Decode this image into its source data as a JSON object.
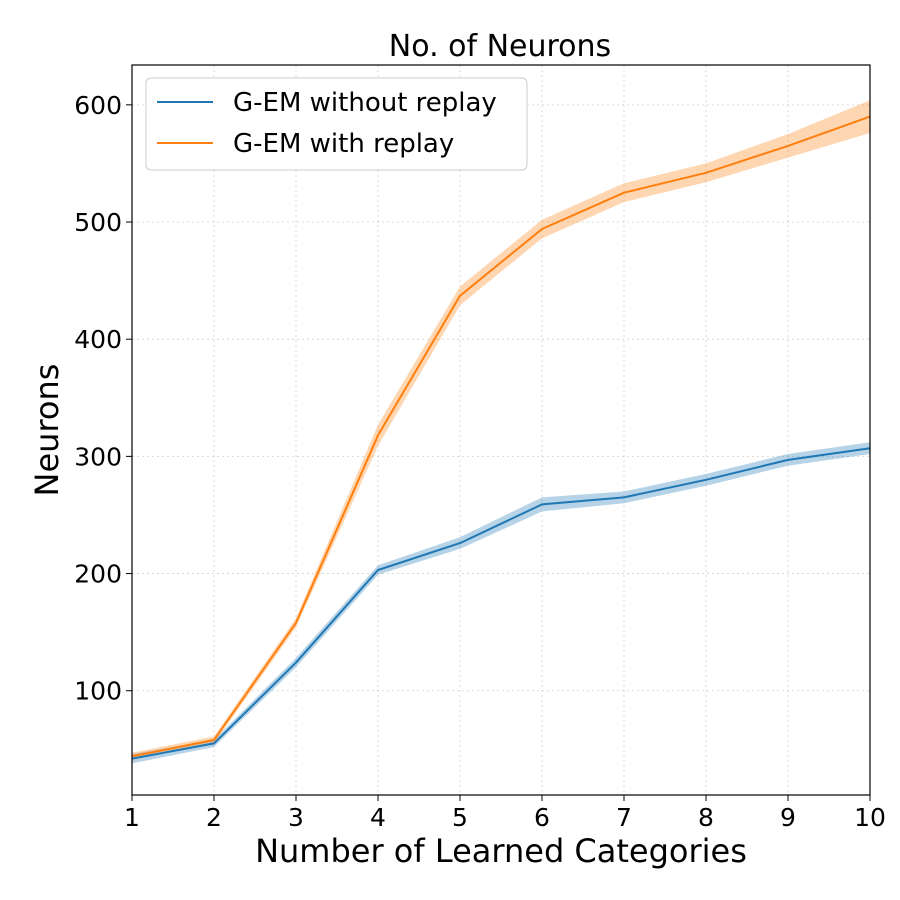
{
  "chart_data": {
    "type": "line",
    "title": "No. of Neurons",
    "xlabel": "Number of Learned Categories",
    "ylabel": "Neurons",
    "x": [
      1,
      2,
      3,
      4,
      5,
      6,
      7,
      8,
      9,
      10
    ],
    "xticks": [
      "1",
      "2",
      "3",
      "4",
      "5",
      "6",
      "7",
      "8",
      "9",
      "10"
    ],
    "yticks": [
      100,
      200,
      300,
      400,
      500,
      600
    ],
    "xlim": [
      1,
      10
    ],
    "ylim": [
      11,
      634
    ],
    "grid": true,
    "legend_position": "top-left",
    "series": [
      {
        "name": "G-EM without replay",
        "color": "#1f77b4",
        "values": [
          42,
          55,
          124,
          203,
          226,
          259,
          265,
          280,
          297,
          307
        ],
        "band": [
          4,
          3,
          4,
          4,
          5,
          6,
          5,
          5,
          5,
          5
        ]
      },
      {
        "name": "G-EM with replay",
        "color": "#ff7f0e",
        "values": [
          44,
          58,
          158,
          318,
          437,
          494,
          525,
          542,
          565,
          590
        ],
        "band": [
          3,
          3,
          4,
          9,
          8,
          8,
          8,
          8,
          10,
          14
        ]
      }
    ]
  }
}
